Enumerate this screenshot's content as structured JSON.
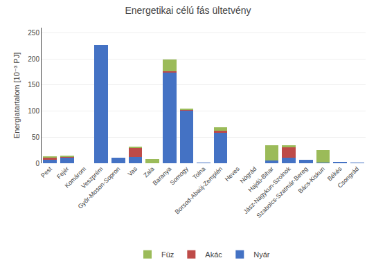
{
  "chart_data": {
    "type": "bar",
    "stacked": true,
    "title": "Energetikai célú fás ültetvény",
    "ylabel": "Energiatartalom [10⁻³ PJ]",
    "categories": [
      "Pest",
      "Fejér",
      "Komárom",
      "Veszprém",
      "Győr-Moson-Sopron",
      "Vas",
      "Zala",
      "Baranya",
      "Somogy",
      "Tolna",
      "Borsod-Abaúj-Zemplén",
      "Heves",
      "Nógrád",
      "Hajdú-Bihar",
      "Jász-Nagykun-Szolnok",
      "Szabolcs-Szatmár-Bereg",
      "Bács-Kiskun",
      "Békés",
      "Csongrád"
    ],
    "series": [
      {
        "name": "Nyár",
        "color": "#4472c4",
        "values": [
          6,
          11,
          0,
          227,
          11,
          12,
          0,
          175,
          102,
          1,
          58,
          0,
          0,
          5,
          11,
          6,
          1,
          3,
          1
        ]
      },
      {
        "name": "Akác",
        "color": "#be4b48",
        "values": [
          5,
          1,
          0,
          0,
          0,
          18,
          0,
          2,
          1,
          0,
          5,
          0,
          0,
          0,
          20,
          0,
          0,
          0,
          0
        ]
      },
      {
        "name": "Füz",
        "color": "#9bbb59",
        "values": [
          1,
          3,
          0,
          0,
          0,
          1,
          8,
          22,
          2,
          0,
          6,
          0,
          0,
          29,
          4,
          0,
          24,
          0,
          0
        ]
      }
    ],
    "ylim": [
      0,
      260
    ],
    "yticks": [
      0,
      50,
      100,
      150,
      200,
      250
    ],
    "grid": true,
    "legend": "bottom"
  }
}
